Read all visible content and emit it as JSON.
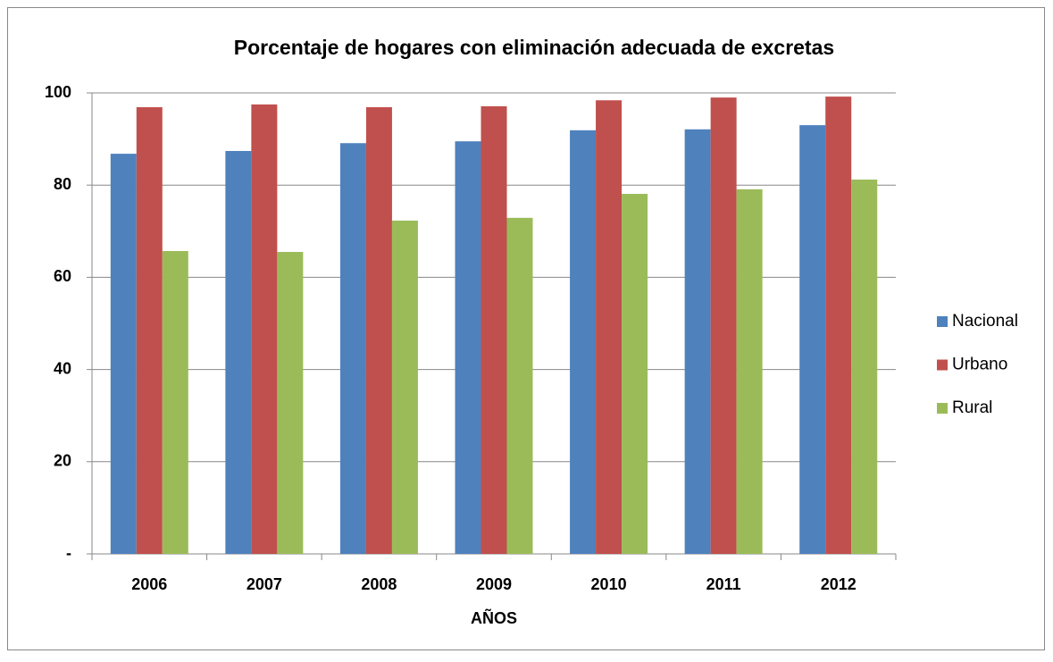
{
  "chart_data": {
    "type": "bar",
    "title": "Porcentaje de hogares con eliminación adecuada de excretas",
    "x_label": "AÑOS",
    "categories": [
      "2006",
      "2007",
      "2008",
      "2009",
      "2010",
      "2011",
      "2012"
    ],
    "series": [
      {
        "name": "Nacional",
        "color": "#4f81bd",
        "values": [
          86.8,
          87.4,
          89.1,
          89.5,
          91.9,
          92.1,
          93.0
        ]
      },
      {
        "name": "Urbano",
        "color": "#c0504d",
        "values": [
          96.9,
          97.5,
          96.9,
          97.1,
          98.4,
          99.0,
          99.2
        ]
      },
      {
        "name": "Rural",
        "color": "#9bbb59",
        "values": [
          65.7,
          65.5,
          72.3,
          72.9,
          78.1,
          79.1,
          81.2
        ]
      }
    ],
    "ylim": [
      0,
      100
    ],
    "yticks": [
      {
        "value": 0,
        "label": "-"
      },
      20,
      40,
      60,
      80,
      100
    ],
    "grid": true,
    "legend": "right"
  }
}
